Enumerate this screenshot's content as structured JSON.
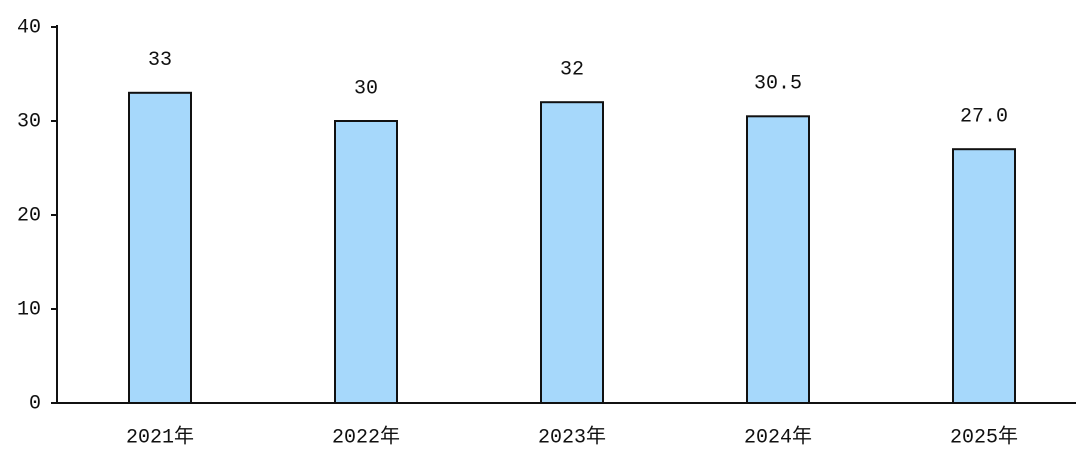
{
  "chart_data": {
    "type": "bar",
    "categories": [
      "2021年",
      "2022年",
      "2023年",
      "2024年",
      "2025年"
    ],
    "values": [
      33,
      30,
      32,
      30.5,
      27.0
    ],
    "value_labels": [
      "33",
      "30",
      "32",
      "30.5",
      "27.0"
    ],
    "color": "#a6d8fb",
    "ylim": [
      0,
      40
    ],
    "yticks": [
      0,
      10,
      20,
      30,
      40
    ],
    "grid": false
  }
}
